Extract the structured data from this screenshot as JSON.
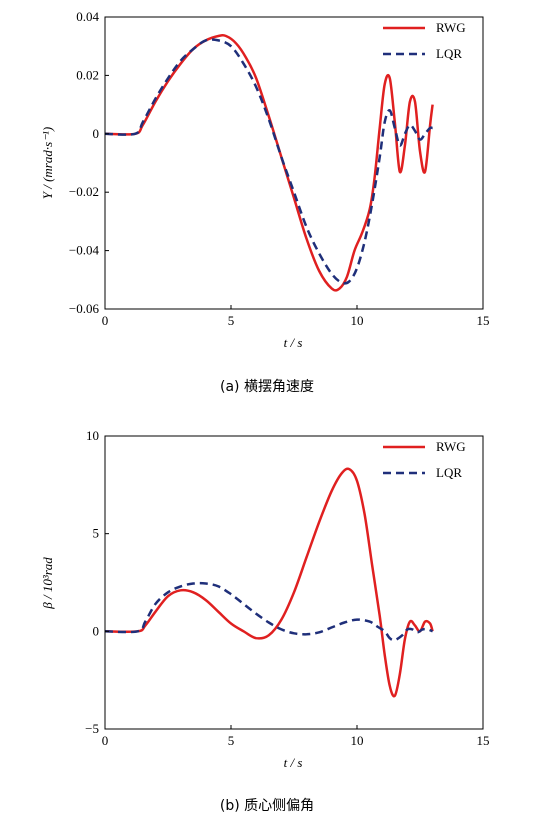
{
  "chart_data": [
    {
      "type": "line",
      "caption": "(a)  横摆角速度",
      "xlabel": "t / s",
      "ylabel": "Y / (mrad·s⁻¹)",
      "xlim": [
        0,
        15
      ],
      "ylim": [
        -0.06,
        0.04
      ],
      "xticks": [
        0,
        5,
        10,
        15
      ],
      "yticks": [
        0.04,
        0.02,
        0,
        -0.02,
        -0.04,
        -0.06
      ],
      "ytick_labels": [
        "0.04",
        "0.02",
        "0",
        "−0.02",
        "−0.04",
        "−0.06"
      ],
      "legend_position": "top-right",
      "grid": false,
      "series": [
        {
          "name": "RWG",
          "color": "#e02020",
          "style": "solid",
          "x": [
            0,
            1.2,
            1.5,
            2.0,
            2.5,
            3.0,
            3.5,
            4.0,
            4.5,
            4.8,
            5.2,
            5.6,
            6.0,
            6.5,
            7.0,
            7.5,
            8.0,
            8.5,
            9.0,
            9.3,
            9.6,
            9.9,
            10.2,
            10.5,
            10.7,
            10.9,
            11.1,
            11.3,
            11.5,
            11.7,
            11.9,
            12.1,
            12.3,
            12.5,
            12.7,
            12.9,
            13.0
          ],
          "y": [
            0,
            0,
            0.003,
            0.011,
            0.018,
            0.024,
            0.029,
            0.032,
            0.0335,
            0.0335,
            0.031,
            0.026,
            0.019,
            0.006,
            -0.008,
            -0.022,
            -0.036,
            -0.047,
            -0.053,
            -0.053,
            -0.049,
            -0.04,
            -0.034,
            -0.026,
            -0.015,
            0.002,
            0.017,
            0.019,
            0.004,
            -0.013,
            -0.004,
            0.011,
            0.011,
            -0.006,
            -0.013,
            0.003,
            0.01
          ]
        },
        {
          "name": "LQR",
          "color": "#1f2f7a",
          "style": "dashed",
          "x": [
            0,
            1.2,
            1.5,
            2.0,
            2.5,
            3.0,
            3.5,
            4.0,
            4.5,
            5.0,
            5.5,
            6.0,
            6.5,
            7.0,
            7.5,
            8.0,
            8.5,
            9.0,
            9.4,
            9.7,
            10.0,
            10.3,
            10.6,
            10.9,
            11.1,
            11.3,
            11.5,
            11.7,
            11.9,
            12.1,
            12.3,
            12.5,
            12.7,
            12.9,
            13.0
          ],
          "y": [
            0,
            0,
            0.004,
            0.012,
            0.019,
            0.025,
            0.029,
            0.032,
            0.032,
            0.03,
            0.024,
            0.016,
            0.005,
            -0.008,
            -0.02,
            -0.032,
            -0.041,
            -0.048,
            -0.051,
            -0.0505,
            -0.046,
            -0.037,
            -0.024,
            -0.008,
            0.004,
            0.008,
            0.002,
            -0.004,
            0.0,
            0.003,
            0.001,
            -0.002,
            0.0,
            0.002,
            0.002
          ]
        }
      ]
    },
    {
      "type": "line",
      "caption": "(b)  质心侧偏角",
      "xlabel": "t / s",
      "ylabel": "β / 10³rad",
      "xlim": [
        0,
        15
      ],
      "ylim": [
        -5,
        10
      ],
      "xticks": [
        0,
        5,
        10,
        15
      ],
      "yticks": [
        10,
        5,
        0,
        -5
      ],
      "ytick_labels": [
        "10",
        "5",
        "0",
        "−5"
      ],
      "legend_position": "top-right",
      "grid": false,
      "series": [
        {
          "name": "RWG",
          "color": "#e02020",
          "style": "solid",
          "x": [
            0,
            1.3,
            1.6,
            2.0,
            2.5,
            3.0,
            3.5,
            4.0,
            4.5,
            5.0,
            5.5,
            6.0,
            6.5,
            7.0,
            7.5,
            8.0,
            8.5,
            9.0,
            9.4,
            9.7,
            10.0,
            10.3,
            10.6,
            10.9,
            11.1,
            11.3,
            11.5,
            11.7,
            11.9,
            12.1,
            12.3,
            12.5,
            12.7,
            12.9,
            13.0
          ],
          "y": [
            0,
            0,
            0.3,
            1.0,
            1.8,
            2.1,
            2.0,
            1.6,
            1.0,
            0.4,
            0.0,
            -0.35,
            -0.2,
            0.6,
            2.0,
            3.8,
            5.6,
            7.2,
            8.1,
            8.3,
            7.7,
            6.0,
            3.4,
            0.8,
            -1.2,
            -2.8,
            -3.3,
            -2.2,
            -0.4,
            0.5,
            0.3,
            0.0,
            0.5,
            0.4,
            0.0
          ]
        },
        {
          "name": "LQR",
          "color": "#1f2f7a",
          "style": "dashed",
          "x": [
            0,
            1.3,
            1.6,
            2.0,
            2.5,
            3.0,
            3.5,
            4.0,
            4.5,
            5.0,
            5.5,
            6.0,
            6.5,
            7.0,
            7.5,
            8.0,
            8.5,
            9.0,
            9.5,
            10.0,
            10.5,
            10.8,
            11.1,
            11.3,
            11.5,
            11.8,
            12.0,
            12.2,
            12.4,
            12.6,
            12.8,
            13.0
          ],
          "y": [
            0,
            0,
            0.5,
            1.4,
            2.0,
            2.3,
            2.45,
            2.45,
            2.3,
            1.9,
            1.4,
            0.9,
            0.45,
            0.1,
            -0.1,
            -0.15,
            -0.05,
            0.2,
            0.45,
            0.6,
            0.5,
            0.25,
            0.0,
            -0.35,
            -0.45,
            -0.2,
            0.1,
            0.1,
            -0.05,
            0.1,
            0.1,
            0.0
          ]
        }
      ]
    }
  ]
}
